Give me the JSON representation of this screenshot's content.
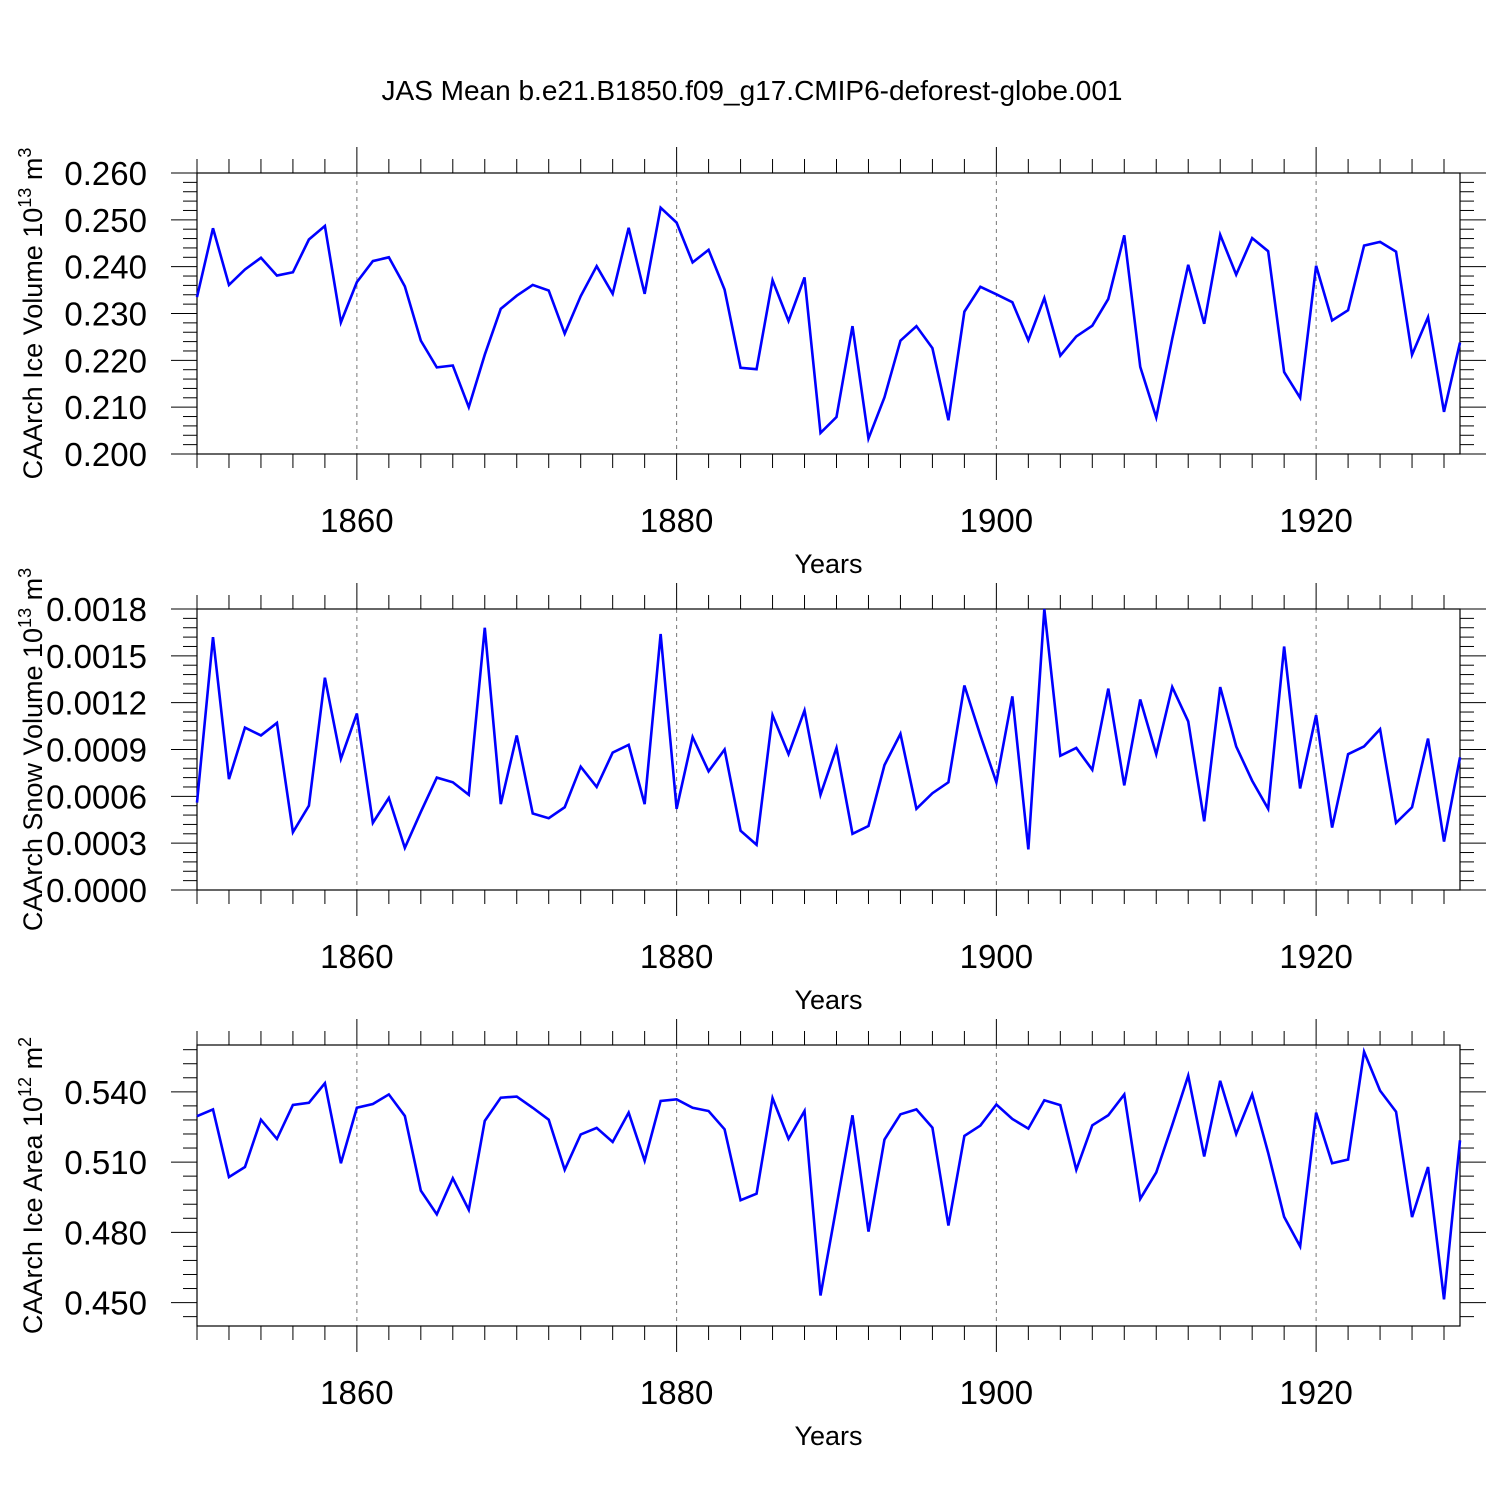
{
  "title": "JAS Mean b.e21.B1850.f09_g17.CMIP6-deforest-globe.001",
  "colors": {
    "line": "#0000ff",
    "axis": "#000000",
    "grid": "#777777"
  },
  "chart_data": [
    {
      "type": "line",
      "ylabel_main": "CAArch Ice Volume 10",
      "ylabel_exp": "13",
      "ylabel_unit": " m",
      "ylabel_unit_exp": "3",
      "xlabel": "Years",
      "xlim": [
        1850,
        1929
      ],
      "ylim": [
        0.2,
        0.26
      ],
      "yticks": [
        0.2,
        0.21,
        0.22,
        0.23,
        0.24,
        0.25,
        0.26
      ],
      "ytick_labels": [
        "0.200",
        "0.210",
        "0.220",
        "0.230",
        "0.240",
        "0.250",
        "0.260"
      ],
      "xticks": [
        1860,
        1880,
        1900,
        1920
      ],
      "xtick_labels": [
        "1860",
        "1880",
        "1900",
        "1920"
      ],
      "x_start": 1850,
      "values": [
        0.2335,
        0.2482,
        0.2361,
        0.2394,
        0.2419,
        0.2381,
        0.2388,
        0.2458,
        0.2487,
        0.2281,
        0.2367,
        0.2412,
        0.242,
        0.2358,
        0.2242,
        0.2185,
        0.2189,
        0.21,
        0.2212,
        0.231,
        0.2338,
        0.2361,
        0.2349,
        0.2257,
        0.2337,
        0.2401,
        0.2342,
        0.2483,
        0.2342,
        0.2526,
        0.2494,
        0.2409,
        0.2436,
        0.2351,
        0.2184,
        0.2181,
        0.2371,
        0.2284,
        0.2377,
        0.2045,
        0.2079,
        0.2273,
        0.2033,
        0.2121,
        0.2242,
        0.2273,
        0.2226,
        0.2072,
        0.2304,
        0.2357,
        0.2341,
        0.2324,
        0.2243,
        0.2333,
        0.221,
        0.2251,
        0.2274,
        0.2331,
        0.2467,
        0.2186,
        0.2078,
        0.2246,
        0.2404,
        0.2278,
        0.2468,
        0.2383,
        0.2461,
        0.2433,
        0.2175,
        0.212,
        0.2402,
        0.2285,
        0.2307,
        0.2445,
        0.2453,
        0.2432,
        0.2212,
        0.2292,
        0.209,
        0.2238
      ]
    },
    {
      "type": "line",
      "ylabel_main": "CAArch Snow Volume 10",
      "ylabel_exp": "13",
      "ylabel_unit": " m",
      "ylabel_unit_exp": "3",
      "xlabel": "Years",
      "xlim": [
        1850,
        1929
      ],
      "ylim": [
        0.0,
        0.0018
      ],
      "yticks": [
        0.0,
        0.0003,
        0.0006,
        0.0009,
        0.0012,
        0.0015,
        0.0018
      ],
      "ytick_labels": [
        "0.0000",
        "0.0003",
        "0.0006",
        "0.0009",
        "0.0012",
        "0.0015",
        "0.0018"
      ],
      "xticks": [
        1860,
        1880,
        1900,
        1920
      ],
      "xtick_labels": [
        "1860",
        "1880",
        "1900",
        "1920"
      ],
      "x_start": 1850,
      "values": [
        0.00056,
        0.00162,
        0.00071,
        0.00104,
        0.00099,
        0.00107,
        0.00037,
        0.00054,
        0.00136,
        0.00084,
        0.00113,
        0.00043,
        0.00059,
        0.00027,
        0.0005,
        0.00072,
        0.00069,
        0.00061,
        0.00168,
        0.00055,
        0.00099,
        0.00049,
        0.00046,
        0.00053,
        0.00079,
        0.00066,
        0.00088,
        0.00093,
        0.00055,
        0.00164,
        0.00052,
        0.00098,
        0.00076,
        0.0009,
        0.00038,
        0.00029,
        0.00112,
        0.00087,
        0.00115,
        0.00061,
        0.00091,
        0.00036,
        0.00041,
        0.0008,
        0.001,
        0.00052,
        0.00062,
        0.00069,
        0.00131,
        0.00099,
        0.00069,
        0.00124,
        0.00026,
        0.0018,
        0.00086,
        0.00091,
        0.00077,
        0.00129,
        0.00067,
        0.00122,
        0.00087,
        0.0013,
        0.00108,
        0.00044,
        0.0013,
        0.00092,
        0.0007,
        0.00052,
        0.00156,
        0.00065,
        0.00112,
        0.0004,
        0.00087,
        0.00092,
        0.00103,
        0.00043,
        0.00053,
        0.00097,
        0.00031,
        0.00085
      ]
    },
    {
      "type": "line",
      "ylabel_main": "CAArch Ice Area 10",
      "ylabel_exp": "12",
      "ylabel_unit": " m",
      "ylabel_unit_exp": "2",
      "xlabel": "Years",
      "xlim": [
        1850,
        1929
      ],
      "ylim": [
        0.44,
        0.56
      ],
      "yticks": [
        0.45,
        0.48,
        0.51,
        0.54
      ],
      "ytick_labels": [
        "0.450",
        "0.480",
        "0.510",
        "0.540"
      ],
      "xticks": [
        1860,
        1880,
        1900,
        1920
      ],
      "xtick_labels": [
        "1860",
        "1880",
        "1900",
        "1920"
      ],
      "x_start": 1850,
      "values": [
        0.5296,
        0.5325,
        0.5036,
        0.5079,
        0.5281,
        0.5199,
        0.5344,
        0.5353,
        0.5437,
        0.5095,
        0.5332,
        0.5348,
        0.5389,
        0.5297,
        0.4978,
        0.4877,
        0.5031,
        0.4896,
        0.5276,
        0.5375,
        0.538,
        0.5332,
        0.5281,
        0.5067,
        0.5218,
        0.5246,
        0.5186,
        0.5311,
        0.5106,
        0.5361,
        0.5368,
        0.5332,
        0.5318,
        0.524,
        0.4937,
        0.4965,
        0.5373,
        0.5199,
        0.5318,
        0.453,
        0.4911,
        0.53,
        0.4803,
        0.5196,
        0.5304,
        0.5325,
        0.5247,
        0.4829,
        0.5212,
        0.5256,
        0.5346,
        0.5284,
        0.5243,
        0.5364,
        0.5343,
        0.5067,
        0.5257,
        0.53,
        0.5389,
        0.4943,
        0.5056,
        0.5258,
        0.5469,
        0.5124,
        0.5447,
        0.522,
        0.5389,
        0.514,
        0.4866,
        0.474,
        0.5311,
        0.5095,
        0.5111,
        0.5571,
        0.5405,
        0.5315,
        0.4865,
        0.5079,
        0.4514,
        0.5193
      ]
    }
  ]
}
